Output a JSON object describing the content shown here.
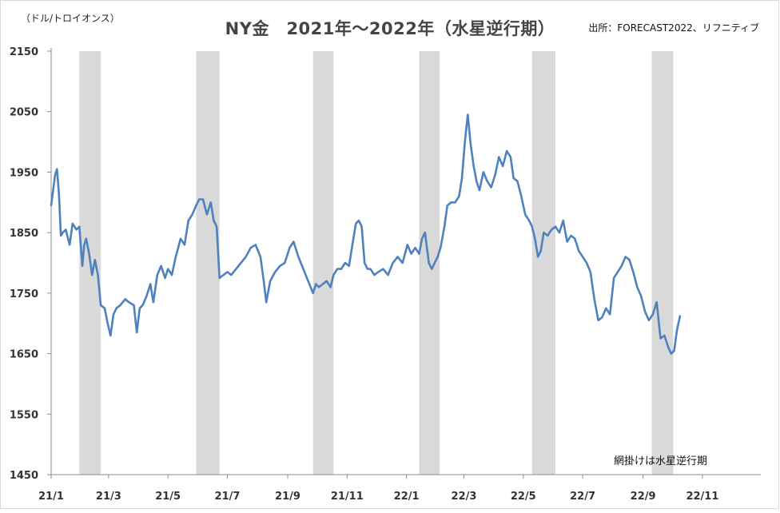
{
  "chart_data": {
    "type": "line",
    "title": "NY金　2021年～2022年（水星逆行期）",
    "unit_label": "（ドル/トロイオンス）",
    "source": "出所：FORECAST2022、リフニティブ",
    "note": "網掛けは水星逆行期",
    "ylim": [
      1450,
      2150
    ],
    "ytick_values": [
      1450,
      1550,
      1650,
      1750,
      1850,
      1950,
      2050,
      2150
    ],
    "ytick_labels": [
      "1450",
      "1550",
      "1650",
      "1750",
      "1850",
      "1950",
      "2050",
      "2150"
    ],
    "xlim": [
      "2021-01-01",
      "2022-12-31"
    ],
    "xtick_dates": [
      "2021-01-01",
      "2021-03-01",
      "2021-05-01",
      "2021-07-01",
      "2021-09-01",
      "2021-11-01",
      "2022-01-01",
      "2022-03-01",
      "2022-05-01",
      "2022-07-01",
      "2022-09-01",
      "2022-11-01"
    ],
    "xtick_labels": [
      "21/1",
      "21/3",
      "21/5",
      "21/7",
      "21/9",
      "21/11",
      "22/1",
      "22/3",
      "22/5",
      "22/7",
      "22/9",
      "22/11"
    ],
    "shaded_periods": [
      {
        "start": "2021-01-30",
        "end": "2021-02-21"
      },
      {
        "start": "2021-05-30",
        "end": "2021-06-23"
      },
      {
        "start": "2021-09-27",
        "end": "2021-10-18"
      },
      {
        "start": "2022-01-14",
        "end": "2022-02-04"
      },
      {
        "start": "2022-05-10",
        "end": "2022-06-03"
      },
      {
        "start": "2022-09-10",
        "end": "2022-10-02"
      }
    ],
    "series": [
      {
        "color": "#4f81bd",
        "x": [
          "2021-01-01",
          "2021-01-05",
          "2021-01-07",
          "2021-01-09",
          "2021-01-11",
          "2021-01-13",
          "2021-01-16",
          "2021-01-20",
          "2021-01-23",
          "2021-01-27",
          "2021-01-30",
          "2021-02-02",
          "2021-02-04",
          "2021-02-06",
          "2021-02-09",
          "2021-02-12",
          "2021-02-15",
          "2021-02-18",
          "2021-02-21",
          "2021-02-25",
          "2021-02-28",
          "2021-03-03",
          "2021-03-06",
          "2021-03-09",
          "2021-03-13",
          "2021-03-18",
          "2021-03-22",
          "2021-03-27",
          "2021-03-30",
          "2021-04-02",
          "2021-04-05",
          "2021-04-09",
          "2021-04-13",
          "2021-04-16",
          "2021-04-20",
          "2021-04-24",
          "2021-04-28",
          "2021-05-01",
          "2021-05-05",
          "2021-05-09",
          "2021-05-14",
          "2021-05-18",
          "2021-05-22",
          "2021-05-26",
          "2021-05-30",
          "2021-06-02",
          "2021-06-06",
          "2021-06-10",
          "2021-06-14",
          "2021-06-17",
          "2021-06-20",
          "2021-06-23",
          "2021-06-27",
          "2021-07-01",
          "2021-07-05",
          "2021-07-10",
          "2021-07-15",
          "2021-07-20",
          "2021-07-25",
          "2021-07-30",
          "2021-08-04",
          "2021-08-07",
          "2021-08-10",
          "2021-08-14",
          "2021-08-19",
          "2021-08-24",
          "2021-08-29",
          "2021-09-03",
          "2021-09-07",
          "2021-09-12",
          "2021-09-17",
          "2021-09-22",
          "2021-09-27",
          "2021-09-30",
          "2021-10-03",
          "2021-10-07",
          "2021-10-11",
          "2021-10-15",
          "2021-10-18",
          "2021-10-22",
          "2021-10-26",
          "2021-10-30",
          "2021-11-03",
          "2021-11-07",
          "2021-11-10",
          "2021-11-13",
          "2021-11-16",
          "2021-11-19",
          "2021-11-22",
          "2021-11-25",
          "2021-11-29",
          "2021-12-03",
          "2021-12-08",
          "2021-12-13",
          "2021-12-18",
          "2021-12-23",
          "2021-12-28",
          "2022-01-02",
          "2022-01-06",
          "2022-01-10",
          "2022-01-14",
          "2022-01-17",
          "2022-01-20",
          "2022-01-24",
          "2022-01-27",
          "2022-01-30",
          "2022-02-02",
          "2022-02-05",
          "2022-02-09",
          "2022-02-12",
          "2022-02-16",
          "2022-02-20",
          "2022-02-24",
          "2022-02-27",
          "2022-03-02",
          "2022-03-05",
          "2022-03-08",
          "2022-03-11",
          "2022-03-14",
          "2022-03-17",
          "2022-03-21",
          "2022-03-25",
          "2022-03-29",
          "2022-04-02",
          "2022-04-06",
          "2022-04-10",
          "2022-04-14",
          "2022-04-18",
          "2022-04-21",
          "2022-04-25",
          "2022-04-29",
          "2022-05-03",
          "2022-05-07",
          "2022-05-10",
          "2022-05-13",
          "2022-05-16",
          "2022-05-19",
          "2022-05-22",
          "2022-05-26",
          "2022-05-30",
          "2022-06-03",
          "2022-06-07",
          "2022-06-11",
          "2022-06-15",
          "2022-06-19",
          "2022-06-23",
          "2022-06-27",
          "2022-07-01",
          "2022-07-05",
          "2022-07-09",
          "2022-07-13",
          "2022-07-17",
          "2022-07-21",
          "2022-07-25",
          "2022-07-29",
          "2022-08-02",
          "2022-08-06",
          "2022-08-10",
          "2022-08-14",
          "2022-08-18",
          "2022-08-22",
          "2022-08-26",
          "2022-08-30",
          "2022-09-03",
          "2022-09-07",
          "2022-09-11",
          "2022-09-15",
          "2022-09-19",
          "2022-09-23",
          "2022-09-27",
          "2022-09-30",
          "2022-10-03",
          "2022-10-06",
          "2022-10-09"
        ],
        "values": [
          1895,
          1945,
          1955,
          1915,
          1845,
          1850,
          1855,
          1830,
          1865,
          1855,
          1860,
          1795,
          1830,
          1840,
          1815,
          1780,
          1805,
          1780,
          1730,
          1725,
          1700,
          1680,
          1715,
          1725,
          1730,
          1740,
          1735,
          1730,
          1685,
          1725,
          1730,
          1745,
          1765,
          1735,
          1780,
          1795,
          1775,
          1790,
          1780,
          1810,
          1840,
          1830,
          1870,
          1880,
          1895,
          1905,
          1905,
          1880,
          1900,
          1870,
          1860,
          1775,
          1780,
          1785,
          1780,
          1790,
          1800,
          1810,
          1825,
          1830,
          1810,
          1775,
          1735,
          1770,
          1785,
          1795,
          1800,
          1825,
          1835,
          1810,
          1790,
          1770,
          1750,
          1765,
          1760,
          1765,
          1770,
          1760,
          1780,
          1790,
          1790,
          1800,
          1795,
          1835,
          1865,
          1870,
          1860,
          1800,
          1790,
          1790,
          1780,
          1785,
          1790,
          1780,
          1800,
          1810,
          1800,
          1830,
          1815,
          1825,
          1815,
          1840,
          1850,
          1800,
          1790,
          1800,
          1810,
          1825,
          1860,
          1895,
          1900,
          1900,
          1910,
          1940,
          2000,
          2045,
          1995,
          1960,
          1935,
          1920,
          1950,
          1935,
          1925,
          1945,
          1975,
          1960,
          1985,
          1975,
          1940,
          1935,
          1910,
          1880,
          1870,
          1860,
          1840,
          1810,
          1820,
          1850,
          1845,
          1855,
          1860,
          1850,
          1870,
          1835,
          1845,
          1840,
          1820,
          1810,
          1800,
          1785,
          1740,
          1705,
          1710,
          1725,
          1715,
          1775,
          1785,
          1795,
          1810,
          1805,
          1785,
          1760,
          1745,
          1720,
          1705,
          1715,
          1735,
          1675,
          1680,
          1660,
          1650,
          1655,
          1690,
          1712
        ]
      }
    ]
  }
}
